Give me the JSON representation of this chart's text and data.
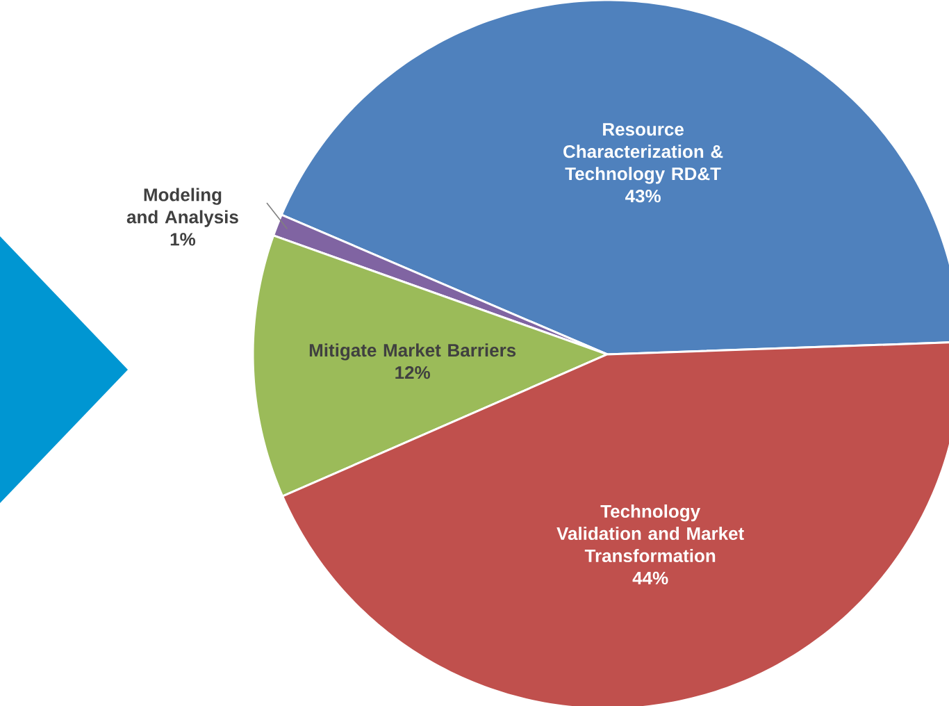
{
  "chart_data": {
    "type": "pie",
    "categories": [
      "Resource Characterization & Technology RD&T",
      "Modeling and Analysis",
      "Mitigate Market Barriers",
      "Technology Validation and Market Transformation"
    ],
    "values": [
      43,
      1,
      12,
      44
    ],
    "value_labels": [
      "43%",
      "1%",
      "12%",
      "44%"
    ],
    "colors": [
      "#4f81bd",
      "#8064a2",
      "#9bbb59",
      "#c0504d"
    ]
  }
}
